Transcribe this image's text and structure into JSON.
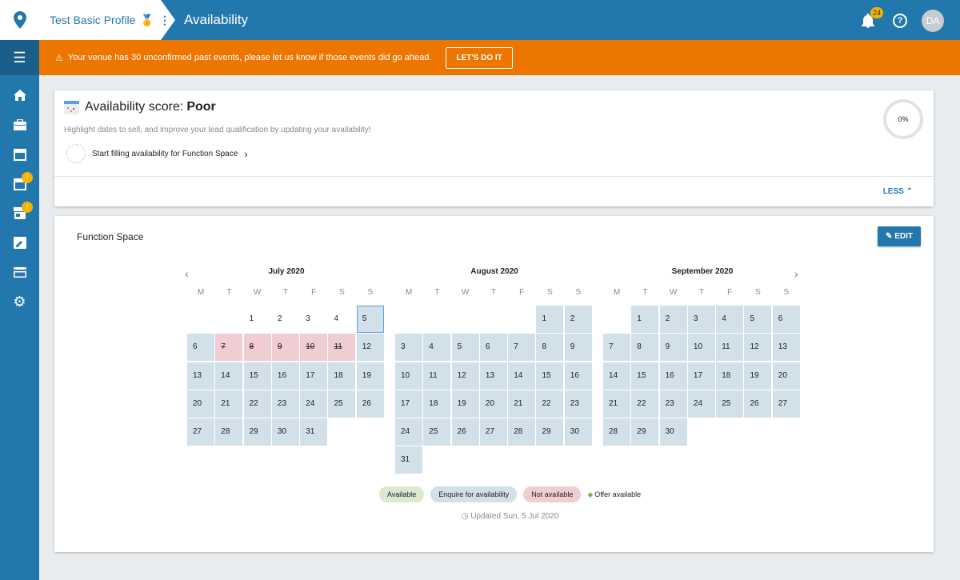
{
  "header": {
    "profile_name": "Test Basic Profile",
    "page_title": "Availability",
    "notification_count": "24",
    "avatar_initials": "DA"
  },
  "sidebar": {
    "items": [
      {
        "icon": "home-icon"
      },
      {
        "icon": "briefcase-icon"
      },
      {
        "icon": "calendar-icon"
      },
      {
        "icon": "calendar-warning-icon",
        "warning": true
      },
      {
        "icon": "store-icon",
        "warning": true
      },
      {
        "icon": "edit-icon"
      },
      {
        "icon": "credit-card-icon"
      },
      {
        "icon": "gear-icon"
      }
    ]
  },
  "banner": {
    "message": "Your venue has 30 unconfirmed past events, please let us know if those events did go ahead.",
    "button": "LET'S DO IT",
    "color": "#ec7600"
  },
  "score": {
    "label": "Availability score: ",
    "value": "Poor",
    "hint": "Highlight dates to sell, and improve your lead qualification by updating your availability!",
    "start": "Start filling availability for Function Space",
    "percent": "0%",
    "less": "LESS"
  },
  "calendar": {
    "space": "Function Space",
    "edit": "EDIT",
    "weekdays": [
      "M",
      "T",
      "W",
      "T",
      "F",
      "S",
      "S"
    ],
    "months": [
      {
        "title": "July 2020",
        "offset": 2,
        "days": 31,
        "past": [
          1,
          2,
          3,
          4
        ],
        "today": 5,
        "not_available": [
          7,
          8,
          9,
          10,
          11
        ]
      },
      {
        "title": "August 2020",
        "offset": 5,
        "days": 31,
        "past": [],
        "today": null,
        "not_available": []
      },
      {
        "title": "September 2020",
        "offset": 1,
        "days": 30,
        "past": [],
        "today": null,
        "not_available": []
      }
    ],
    "legend": {
      "available": "Available",
      "enquire": "Enquire for availability",
      "not_available": "Not available",
      "offer": "Offer available"
    },
    "colors": {
      "available": "#dbe9d2",
      "enquire": "#d2e0e9",
      "not_available": "#f0cdd3",
      "offer": "#7cb342"
    },
    "updated": "Updated Sun, 5 Jul 2020"
  }
}
